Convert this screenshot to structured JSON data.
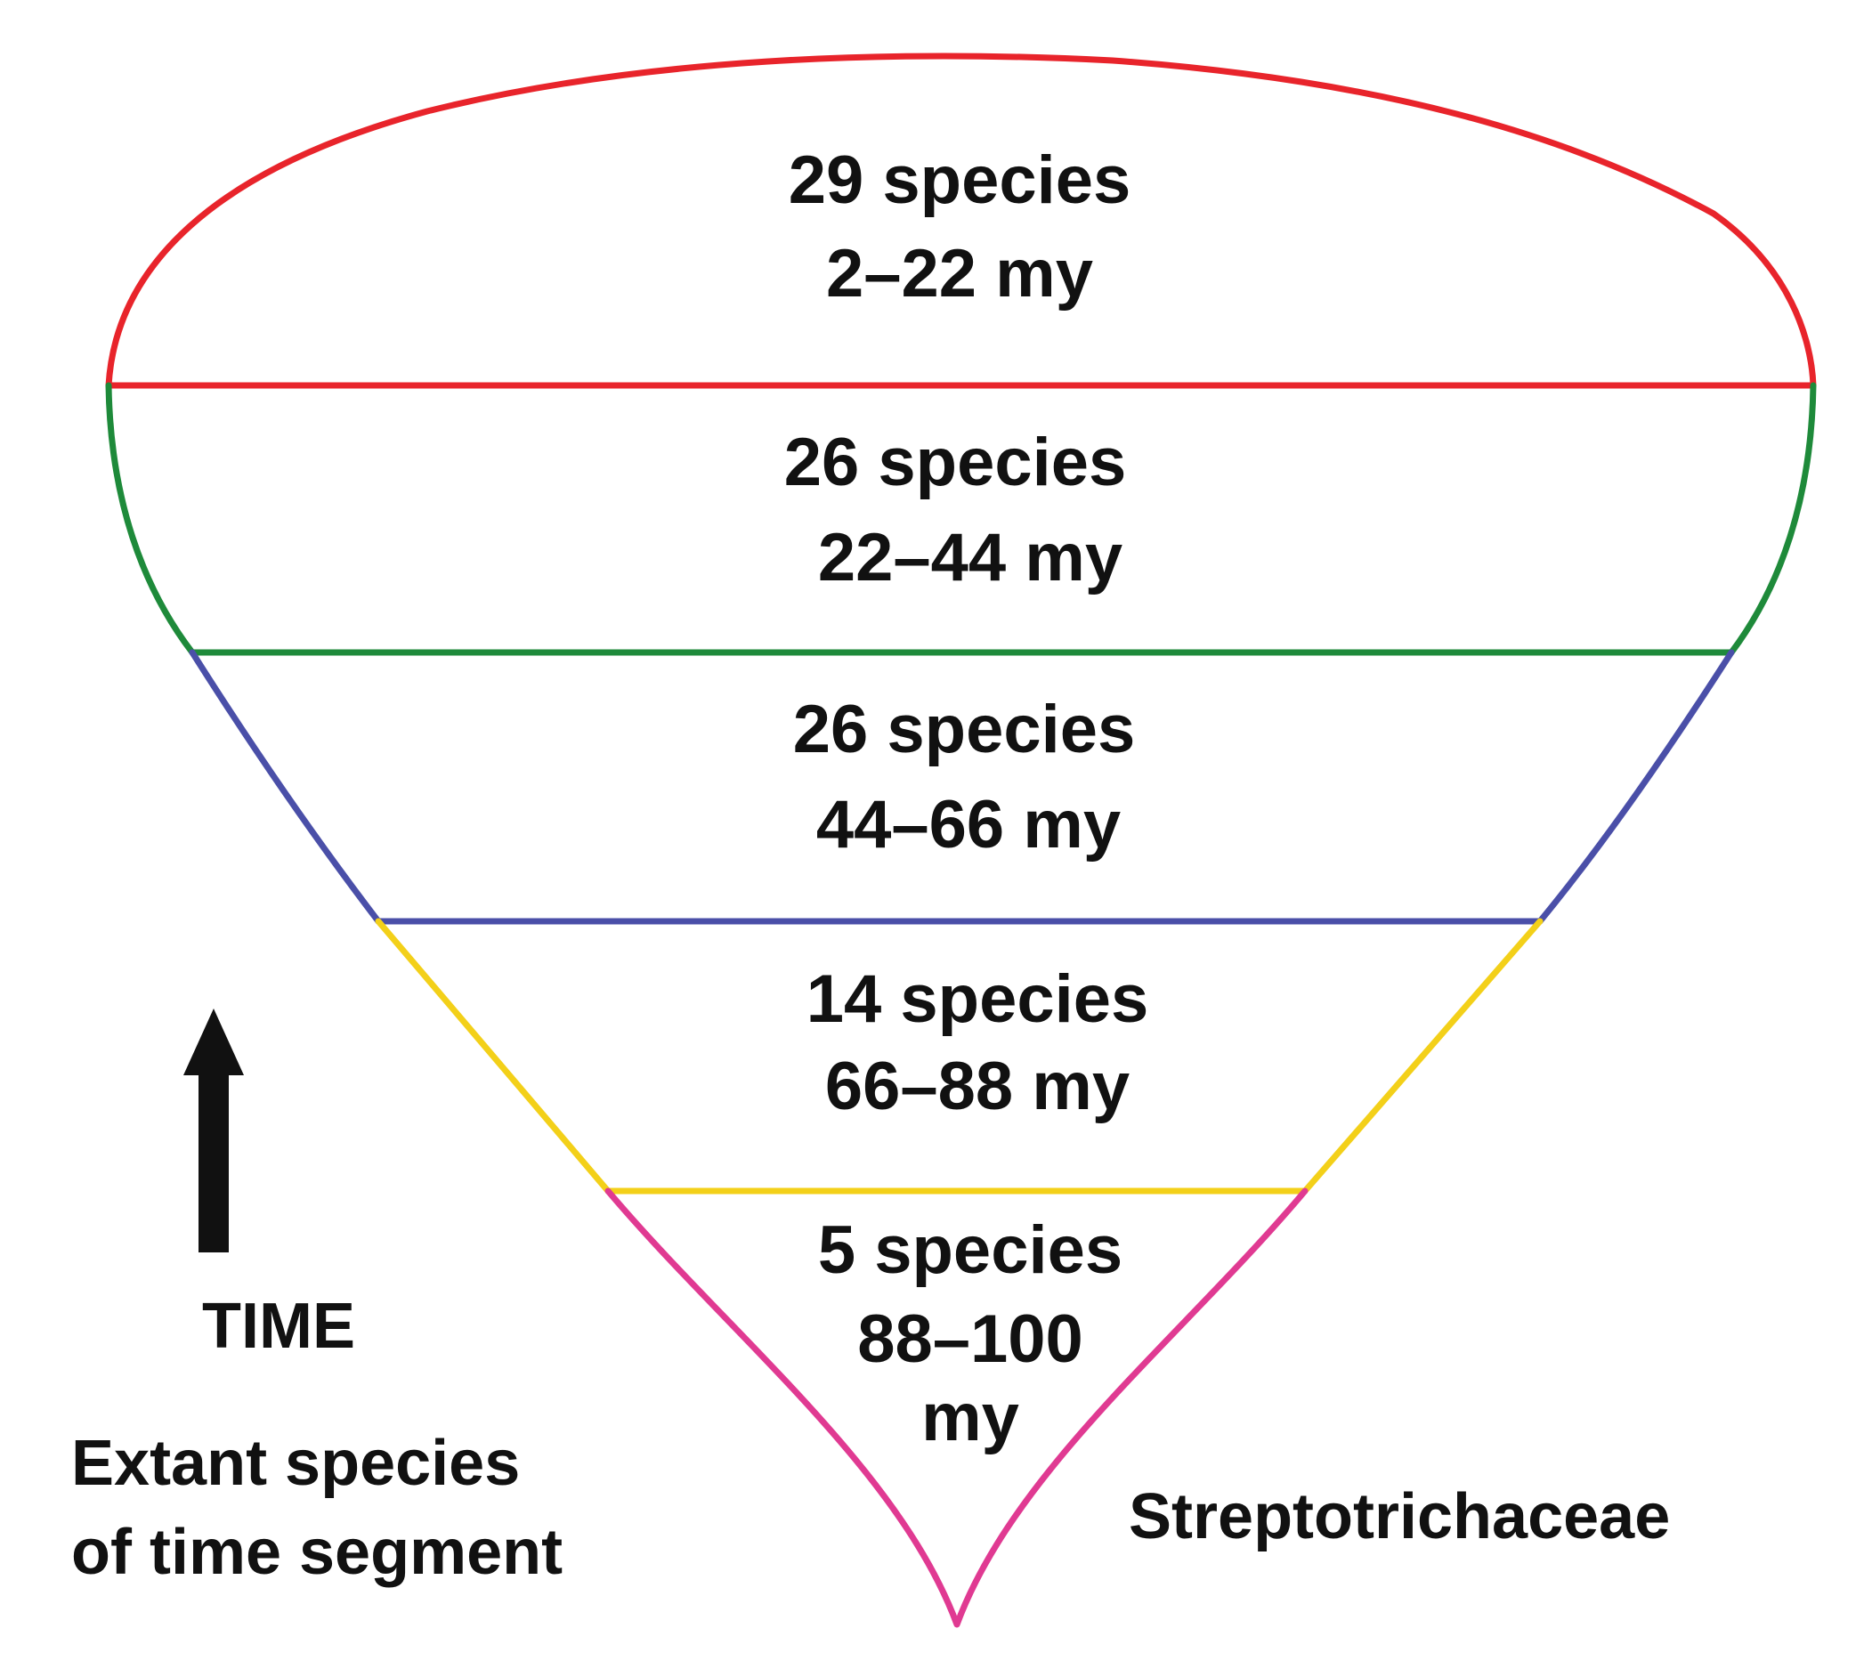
{
  "segments": [
    {
      "species": "29 species",
      "range": "2–22 my",
      "color": "#e8242b"
    },
    {
      "species": "26 species",
      "range": "22–44 my",
      "color": "#1e8a3a"
    },
    {
      "species": "26 species",
      "range": "44–66 my",
      "color": "#4a4fa8"
    },
    {
      "species": "14 species",
      "range": "66–88 my",
      "color": "#f3d019"
    },
    {
      "species": "5 species",
      "range_line1": "88–100",
      "range_line2": "my",
      "color": "#e03a92"
    }
  ],
  "time_axis": {
    "label": "TIME",
    "icon": "up-arrow-icon"
  },
  "caption_left": {
    "line1": "Extant species",
    "line2": "of time segment"
  },
  "caption_right": "Streptotrichaceae"
}
